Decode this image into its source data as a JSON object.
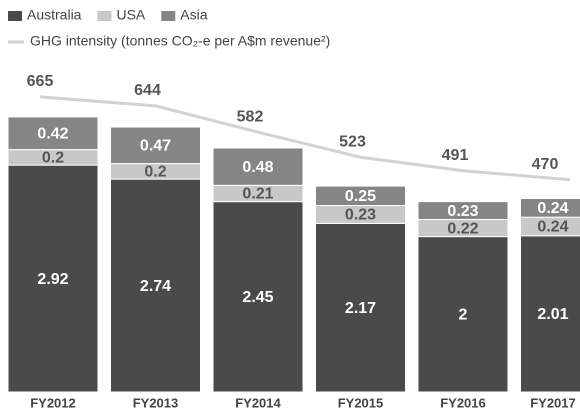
{
  "chart_data": {
    "type": "stacked-bar-line",
    "categories": [
      "FY2012",
      "FY2013",
      "FY2014",
      "FY2015",
      "FY2016",
      "FY2017"
    ],
    "series": [
      {
        "name": "Australia",
        "color": "#4a4a4a",
        "values": [
          2.92,
          2.74,
          2.45,
          2.17,
          2.0,
          2.01
        ]
      },
      {
        "name": "USA",
        "color": "#c8c8c8",
        "values": [
          0.2,
          0.2,
          0.21,
          0.23,
          0.22,
          0.24
        ]
      },
      {
        "name": "Asia",
        "color": "#858585",
        "values": [
          0.42,
          0.47,
          0.48,
          0.25,
          0.23,
          0.24
        ]
      },
      {
        "name": "GHG intensity (tonnes CO₂-e per A$m revenue²)",
        "color": "#d2d2d2",
        "axis": "y2",
        "values": [
          665,
          644,
          582,
          523,
          491,
          470
        ]
      }
    ],
    "ylim": [
      0,
      5
    ],
    "y2lim": [
      -30,
      885
    ]
  }
}
